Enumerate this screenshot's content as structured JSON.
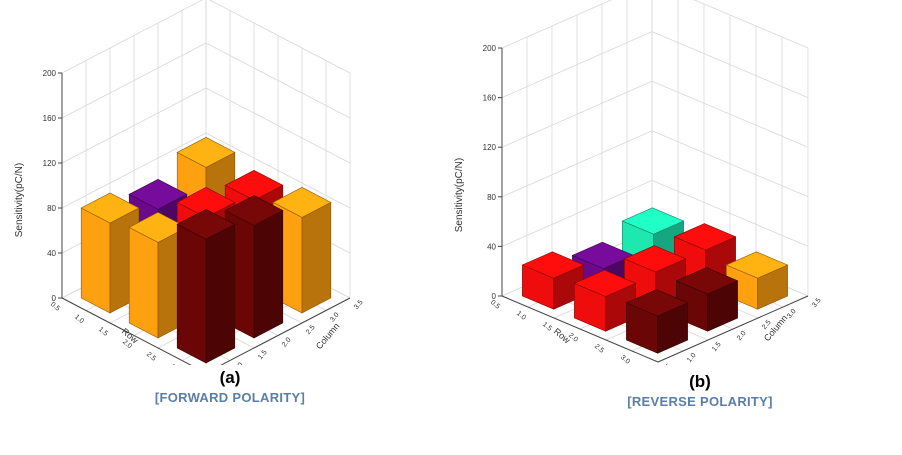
{
  "panels": [
    {
      "panel_label": "(a)",
      "subtitle": "[FORWARD POLARITY]",
      "chart_data": {
        "type": "bar3d",
        "zlabel": "Sensitivity(pC/N)",
        "xlabel": "Row",
        "ylabel": "Column",
        "zlim": [
          0,
          200
        ],
        "zticks": [
          "0",
          "40",
          "80",
          "120",
          "160",
          "200"
        ],
        "row_ticks": [
          "0.5",
          "1.0",
          "1.5",
          "2.0",
          "2.5",
          "3.0",
          "3.5"
        ],
        "column_ticks": [
          "0.5",
          "1.0",
          "1.5",
          "2.0",
          "2.5",
          "3.0",
          "3.5"
        ],
        "grid": true,
        "bars": [
          {
            "row": 1,
            "col": 3,
            "value": 85,
            "color": "#ffa010"
          },
          {
            "row": 1,
            "col": 2,
            "value": 70,
            "color": "#6a0a8a"
          },
          {
            "row": 1,
            "col": 1,
            "value": 80,
            "color": "#ffa010"
          },
          {
            "row": 2,
            "col": 3,
            "value": 78,
            "color": "#ee0c0c"
          },
          {
            "row": 2,
            "col": 2,
            "value": 85,
            "color": "#ee0c0c"
          },
          {
            "row": 2,
            "col": 1,
            "value": 85,
            "color": "#ffa010"
          },
          {
            "row": 3,
            "col": 3,
            "value": 85,
            "color": "#ffa010"
          },
          {
            "row": 3,
            "col": 2,
            "value": 100,
            "color": "#6b0606"
          },
          {
            "row": 3,
            "col": 1,
            "value": 110,
            "color": "#6b0606"
          }
        ]
      }
    },
    {
      "panel_label": "(b)",
      "subtitle": "[REVERSE POLARITY]",
      "chart_data": {
        "type": "bar3d",
        "zlabel": "Sensitivity(pC/N)",
        "xlabel": "Row",
        "ylabel": "Column",
        "zlim": [
          0,
          200
        ],
        "zticks": [
          "0",
          "40",
          "80",
          "120",
          "160",
          "200"
        ],
        "row_ticks": [
          "0.5",
          "1.0",
          "1.5",
          "2.0",
          "2.5",
          "3.0",
          "3.5"
        ],
        "column_ticks": [
          "0.5",
          "1.0",
          "1.5",
          "2.0",
          "2.5",
          "3.0",
          "3.5"
        ],
        "grid": true,
        "bars": [
          {
            "row": 1,
            "col": 3,
            "value": 25,
            "color": "#1de8b0"
          },
          {
            "row": 1,
            "col": 2,
            "value": 15,
            "color": "#6a0a8a"
          },
          {
            "row": 1,
            "col": 1,
            "value": 25,
            "color": "#ee0c0c"
          },
          {
            "row": 2,
            "col": 3,
            "value": 30,
            "color": "#ee0c0c"
          },
          {
            "row": 2,
            "col": 2,
            "value": 30,
            "color": "#ee0c0c"
          },
          {
            "row": 2,
            "col": 1,
            "value": 28,
            "color": "#ee0c0c"
          },
          {
            "row": 3,
            "col": 3,
            "value": 25,
            "color": "#ffa010"
          },
          {
            "row": 3,
            "col": 2,
            "value": 30,
            "color": "#6b0606"
          },
          {
            "row": 3,
            "col": 1,
            "value": 30,
            "color": "#6b0606"
          }
        ]
      }
    }
  ]
}
